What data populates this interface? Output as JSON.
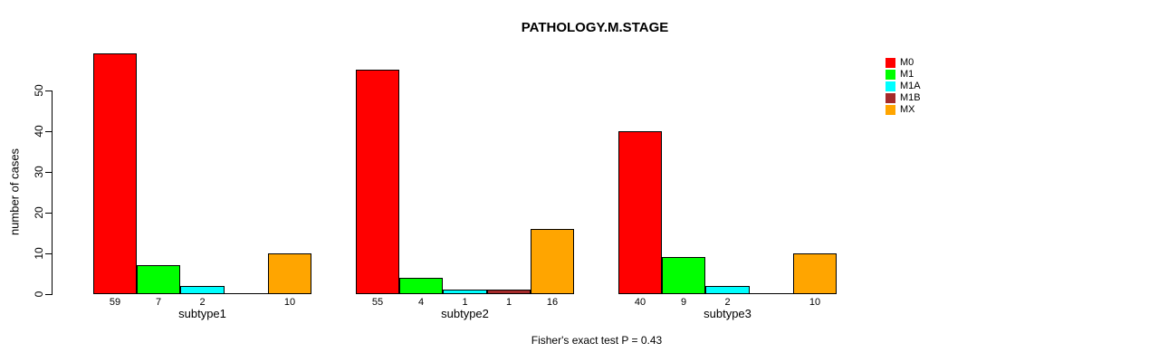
{
  "chart_data": {
    "type": "bar",
    "title": "PATHOLOGY.M.STAGE",
    "xlabel": "",
    "ylabel": "number of cases",
    "footer": "Fisher's exact test P = 0.43",
    "categories": [
      "subtype1",
      "subtype2",
      "subtype3"
    ],
    "series": [
      {
        "name": "M0",
        "color": "#FF0000",
        "values": [
          59,
          55,
          40
        ]
      },
      {
        "name": "M1",
        "color": "#00FF00",
        "values": [
          7,
          4,
          9
        ]
      },
      {
        "name": "M1A",
        "color": "#00FFFF",
        "values": [
          2,
          1,
          2
        ]
      },
      {
        "name": "M1B",
        "color": "#A52A2A",
        "values": [
          0,
          1,
          0
        ]
      },
      {
        "name": "MX",
        "color": "#FFA500",
        "values": [
          10,
          16,
          10
        ]
      }
    ],
    "yticks": [
      0,
      10,
      20,
      30,
      40,
      50
    ],
    "ylim": [
      0,
      59
    ],
    "grid": false,
    "legend_position": "top-right",
    "show_value_labels": true,
    "hide_zero_value_labels": true,
    "bar_border_color": "#000000",
    "background_color": "#FFFFFF"
  }
}
